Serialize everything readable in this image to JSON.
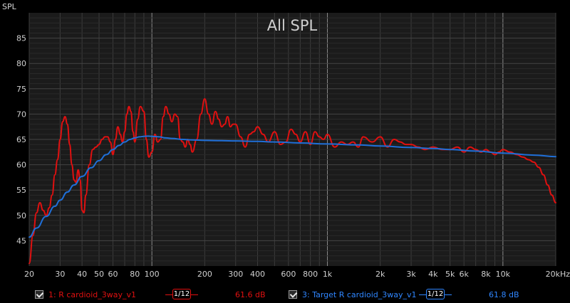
{
  "chart_data": {
    "type": "line",
    "title": "All SPL",
    "ylabel": "SPL",
    "xlabel": "",
    "x_scale": "log",
    "xlim": [
      20,
      20000
    ],
    "ylim": [
      40,
      90
    ],
    "grid": true,
    "x_ticks": [
      20,
      30,
      40,
      50,
      60,
      80,
      100,
      200,
      300,
      400,
      600,
      800,
      1000,
      2000,
      3000,
      4000,
      5000,
      6000,
      8000,
      10000,
      20000
    ],
    "x_tick_labels": [
      "20",
      "30",
      "40",
      "50",
      "60",
      "80",
      "100",
      "200",
      "300",
      "400",
      "600",
      "800",
      "1k",
      "2k",
      "3k",
      "4k",
      "5k",
      "6k",
      "8k",
      "10k",
      "20kHz"
    ],
    "y_ticks": [
      45,
      50,
      55,
      60,
      65,
      70,
      75,
      80,
      85
    ],
    "y_tick_labels": [
      "45",
      "50",
      "55",
      "60",
      "65",
      "70",
      "75",
      "80",
      "85"
    ],
    "series": [
      {
        "name": "1: R cardioid_3way_v1",
        "color": "#e01010",
        "x": [
          20,
          21,
          22,
          23,
          24,
          25,
          26,
          27,
          28,
          29,
          30,
          31,
          32,
          33,
          34,
          35,
          36,
          37,
          38,
          39,
          40,
          41,
          42,
          44,
          46,
          48,
          50,
          52,
          54,
          56,
          58,
          60,
          62,
          64,
          66,
          68,
          70,
          72,
          74,
          76,
          78,
          80,
          83,
          86,
          90,
          93,
          96,
          100,
          104,
          108,
          112,
          116,
          120,
          125,
          130,
          135,
          140,
          145,
          150,
          155,
          160,
          165,
          170,
          180,
          190,
          200,
          210,
          220,
          230,
          240,
          250,
          260,
          270,
          280,
          290,
          300,
          320,
          340,
          360,
          380,
          400,
          430,
          460,
          500,
          540,
          580,
          620,
          660,
          700,
          750,
          800,
          850,
          900,
          950,
          1000,
          1100,
          1200,
          1300,
          1400,
          1500,
          1600,
          1800,
          2000,
          2200,
          2400,
          2600,
          2800,
          3000,
          3300,
          3600,
          4000,
          4500,
          5000,
          5500,
          6000,
          6500,
          7000,
          7500,
          8000,
          8500,
          9000,
          9500,
          10000,
          11000,
          12000,
          13000,
          14000,
          15000,
          16000,
          17000,
          18000,
          19000,
          20000
        ],
        "values": [
          40.5,
          46.0,
          50.5,
          52.5,
          51.0,
          50.0,
          51.5,
          54.0,
          58.0,
          61.0,
          65.0,
          68.5,
          69.5,
          68.0,
          64.0,
          60.0,
          57.0,
          56.5,
          59.0,
          57.0,
          51.0,
          50.5,
          54.0,
          60.0,
          63.0,
          63.5,
          64.0,
          65.0,
          65.5,
          65.5,
          64.5,
          62.0,
          65.0,
          67.5,
          66.0,
          64.5,
          66.5,
          70.0,
          71.5,
          70.5,
          66.5,
          64.5,
          69.0,
          71.5,
          70.5,
          65.0,
          61.5,
          62.5,
          66.0,
          64.5,
          65.0,
          69.5,
          71.5,
          70.0,
          68.5,
          70.0,
          69.5,
          65.0,
          64.5,
          63.5,
          65.0,
          64.0,
          62.5,
          65.0,
          70.0,
          73.0,
          70.0,
          68.0,
          70.5,
          69.0,
          67.5,
          68.0,
          69.5,
          67.5,
          68.0,
          68.0,
          65.5,
          63.5,
          66.0,
          66.5,
          67.5,
          66.0,
          64.5,
          66.5,
          64.0,
          64.5,
          67.0,
          66.0,
          64.5,
          66.5,
          64.0,
          66.5,
          65.5,
          65.0,
          66.0,
          63.5,
          64.5,
          64.0,
          64.5,
          63.5,
          65.5,
          64.5,
          65.5,
          63.5,
          65.0,
          64.5,
          64.0,
          64.0,
          63.5,
          63.0,
          63.5,
          63.0,
          63.0,
          63.5,
          62.5,
          63.5,
          63.0,
          62.5,
          63.0,
          62.5,
          62.0,
          62.5,
          63.0,
          62.5,
          62.0,
          61.5,
          61.0,
          60.5,
          59.5,
          58.0,
          56.0,
          54.0,
          52.5
        ]
      },
      {
        "name": "3: Target R cardioid_3way_v1",
        "color": "#1f6fd8",
        "x": [
          20,
          22,
          25,
          28,
          30,
          33,
          36,
          40,
          45,
          50,
          55,
          60,
          65,
          70,
          75,
          80,
          85,
          90,
          95,
          100,
          110,
          120,
          130,
          150,
          170,
          200,
          250,
          300,
          400,
          500,
          700,
          1000,
          1500,
          2000,
          3000,
          4000,
          5000,
          7000,
          10000,
          15000,
          20000
        ],
        "values": [
          45.7,
          47.5,
          49.8,
          51.8,
          53.0,
          54.6,
          56.0,
          57.7,
          59.4,
          60.8,
          62.0,
          63.0,
          63.8,
          64.5,
          65.0,
          65.3,
          65.5,
          65.6,
          65.65,
          65.6,
          65.5,
          65.3,
          65.2,
          65.0,
          64.9,
          64.8,
          64.75,
          64.7,
          64.6,
          64.5,
          64.3,
          64.1,
          63.9,
          63.7,
          63.4,
          63.2,
          63.0,
          62.7,
          62.3,
          61.9,
          61.6
        ]
      }
    ]
  },
  "legend": {
    "item1": {
      "label": "1: R cardioid_3way_v1",
      "smoothing": "1/12",
      "value": "61.6 dB"
    },
    "item3": {
      "label": "3: Target R cardioid_3way_v1",
      "smoothing": "1/12",
      "value": "61.8 dB"
    }
  }
}
